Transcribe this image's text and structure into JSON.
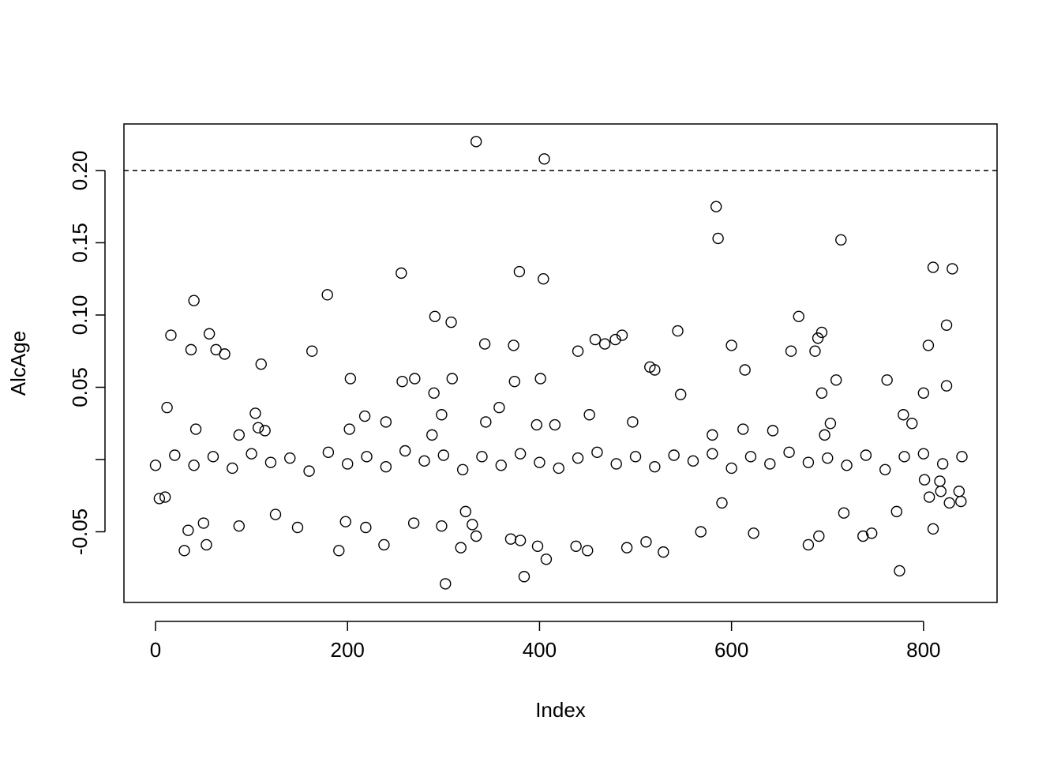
{
  "chart_data": {
    "type": "scatter",
    "xlabel": "Index",
    "ylabel": "AlcAge",
    "color": "#000000",
    "hline": 0.2,
    "xlim": [
      -32.9,
      876.6
    ],
    "ylim": [
      -0.0989,
      0.2322
    ],
    "xticks": [
      0,
      200,
      400,
      600,
      800
    ],
    "yticks": [
      -0.05,
      {
        "value": 0,
        "label": null
      },
      0.05,
      {
        "value": 0.1,
        "label": "0.10"
      },
      0.15,
      {
        "value": 0.2,
        "label": "0.20"
      }
    ],
    "x": [
      334,
      405,
      584,
      586,
      714,
      810,
      830,
      379,
      256,
      404,
      179,
      40,
      291,
      670,
      308,
      824,
      544,
      694,
      56,
      486,
      16,
      458,
      479,
      690,
      343,
      468,
      600,
      805,
      373,
      63,
      37,
      163,
      440,
      662,
      687,
      72,
      110,
      515,
      520,
      614,
      401,
      203,
      309,
      270,
      709,
      762,
      374,
      257,
      824,
      290,
      694,
      800,
      547,
      12,
      358,
      104,
      452,
      779,
      218,
      298,
      240,
      344,
      703,
      788,
      497,
      397,
      416,
      42,
      612,
      107,
      202,
      114,
      643,
      288,
      87,
      580,
      697,
      302,
      775,
      384,
      407,
      318,
      30,
      191,
      450,
      529,
      53,
      238,
      398,
      438,
      491,
      511,
      680,
      370,
      380,
      737,
      746,
      691,
      87,
      298,
      34,
      568,
      623,
      334,
      810,
      330,
      148,
      219,
      198,
      269,
      50,
      323,
      125,
      717,
      772,
      4,
      10,
      0,
      590,
      827,
      839,
      837,
      818,
      806,
      801,
      817,
      20,
      40,
      60,
      80,
      100,
      120,
      140,
      160,
      180,
      200,
      220,
      240,
      260,
      280,
      300,
      320,
      340,
      360,
      380,
      400,
      420,
      440,
      460,
      480,
      500,
      520,
      540,
      560,
      580,
      600,
      620,
      640,
      660,
      680,
      700,
      720,
      740,
      760,
      780,
      800,
      820,
      840
    ],
    "values": [
      0.22,
      0.208,
      0.175,
      0.153,
      0.152,
      0.133,
      0.132,
      0.13,
      0.129,
      0.125,
      0.114,
      0.11,
      0.099,
      0.099,
      0.095,
      0.093,
      0.089,
      0.088,
      0.087,
      0.086,
      0.086,
      0.083,
      0.083,
      0.084,
      0.08,
      0.08,
      0.079,
      0.079,
      0.079,
      0.076,
      0.076,
      0.075,
      0.075,
      0.075,
      0.075,
      0.073,
      0.066,
      0.064,
      0.062,
      0.062,
      0.056,
      0.056,
      0.056,
      0.056,
      0.055,
      0.055,
      0.054,
      0.054,
      0.051,
      0.046,
      0.046,
      0.046,
      0.045,
      0.036,
      0.036,
      0.032,
      0.031,
      0.031,
      0.03,
      0.031,
      0.026,
      0.026,
      0.025,
      0.025,
      0.026,
      0.024,
      0.024,
      0.021,
      0.021,
      0.022,
      0.021,
      0.02,
      0.02,
      0.017,
      0.017,
      0.017,
      0.017,
      -0.086,
      -0.077,
      -0.081,
      -0.069,
      -0.061,
      -0.063,
      -0.063,
      -0.063,
      -0.064,
      -0.059,
      -0.059,
      -0.06,
      -0.06,
      -0.061,
      -0.057,
      -0.059,
      -0.055,
      -0.056,
      -0.053,
      -0.051,
      -0.053,
      -0.046,
      -0.046,
      -0.049,
      -0.05,
      -0.051,
      -0.053,
      -0.048,
      -0.045,
      -0.047,
      -0.047,
      -0.043,
      -0.044,
      -0.044,
      -0.036,
      -0.038,
      -0.037,
      -0.036,
      -0.027,
      -0.026,
      -0.004,
      -0.03,
      -0.03,
      -0.029,
      -0.022,
      -0.022,
      -0.026,
      -0.014,
      -0.015,
      0.003,
      -0.004,
      0.002,
      -0.006,
      0.004,
      -0.002,
      0.001,
      -0.008,
      0.005,
      -0.003,
      0.002,
      -0.005,
      0.006,
      -0.001,
      0.003,
      -0.007,
      0.002,
      -0.004,
      0.004,
      -0.002,
      -0.006,
      0.001,
      0.005,
      -0.003,
      0.002,
      -0.005,
      0.003,
      -0.001,
      0.004,
      -0.006,
      0.002,
      -0.003,
      0.005,
      -0.002,
      0.001,
      -0.004,
      0.003,
      -0.007,
      0.002,
      0.004,
      -0.003,
      0.002
    ]
  }
}
